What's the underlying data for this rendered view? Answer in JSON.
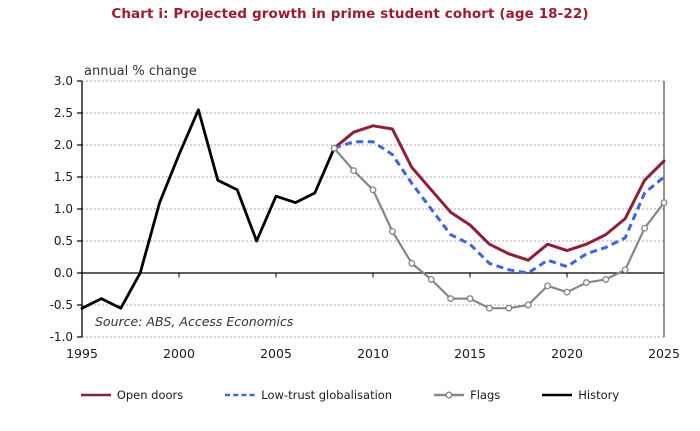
{
  "title": {
    "text": "Chart i: Projected growth in prime student cohort (age 18-22)",
    "color": "#9e1b32"
  },
  "source_note": "Source: ABS, Access Economics",
  "colors": {
    "grid": "#a8a8a8",
    "axis": "#000000",
    "right_border": "#4d4d4d",
    "axis_text": "#1a1a1a",
    "ylabel_text": "#333333"
  },
  "chart_data": {
    "type": "line",
    "title": "Chart i: Projected growth in prime student cohort (age 18-22)",
    "ylabel": "annual % change",
    "xlabel": "",
    "ylim": [
      -1.0,
      3.0
    ],
    "x_range": [
      1995,
      2025
    ],
    "grid": "horizontal-dashed",
    "legend_position": "bottom",
    "y_ticks": [
      "3.0",
      "2.5",
      "2.0",
      "1.5",
      "1.0",
      "0.5",
      "0.0",
      "-0.5",
      "-1.0"
    ],
    "x_ticks": [
      "1995",
      "2000",
      "2005",
      "2010",
      "2015",
      "2020",
      "2025"
    ],
    "series": [
      {
        "name": "History",
        "color": "#000000",
        "style": "solid",
        "width": 2.8,
        "markers": false,
        "x_start": 1995,
        "values": [
          -0.55,
          -0.4,
          -0.55,
          0.0,
          1.1,
          1.85,
          2.55,
          1.45,
          1.3,
          0.5,
          1.2,
          1.1,
          1.25,
          1.95
        ]
      },
      {
        "name": "Open doors",
        "color": "#8e1f38",
        "style": "solid",
        "width": 3,
        "markers": false,
        "x_start": 2008,
        "values": [
          1.95,
          2.2,
          2.3,
          2.25,
          1.65,
          1.3,
          0.95,
          0.75,
          0.45,
          0.3,
          0.2,
          0.45,
          0.35,
          0.45,
          0.6,
          0.85,
          1.45,
          1.75
        ]
      },
      {
        "name": "Low-trust globalisation",
        "color": "#3d64e0",
        "style": "dashed",
        "width": 3,
        "markers": false,
        "x_start": 2008,
        "values": [
          1.95,
          2.05,
          2.05,
          1.85,
          1.4,
          1.0,
          0.6,
          0.45,
          0.15,
          0.05,
          0.0,
          0.2,
          0.1,
          0.3,
          0.4,
          0.55,
          1.25,
          1.5
        ]
      },
      {
        "name": "Flags",
        "color": "#868686",
        "style": "solid",
        "width": 2.2,
        "markers": true,
        "x_start": 2008,
        "values": [
          1.95,
          1.6,
          1.3,
          0.65,
          0.15,
          -0.1,
          -0.4,
          -0.4,
          -0.55,
          -0.55,
          -0.5,
          -0.2,
          -0.3,
          -0.15,
          -0.1,
          0.05,
          0.7,
          1.1
        ]
      }
    ]
  },
  "legend": {
    "order": [
      "Open doors",
      "Low-trust globalisation",
      "Flags",
      "History"
    ]
  }
}
